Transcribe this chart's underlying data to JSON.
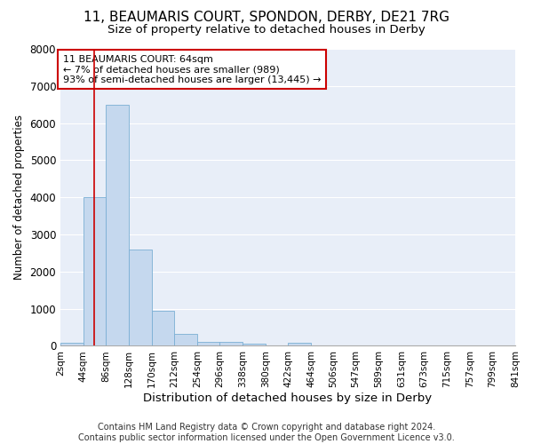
{
  "title1": "11, BEAUMARIS COURT, SPONDON, DERBY, DE21 7RG",
  "title2": "Size of property relative to detached houses in Derby",
  "xlabel": "Distribution of detached houses by size in Derby",
  "ylabel": "Number of detached properties",
  "bar_color": "#c5d8ee",
  "bar_edge_color": "#7aafd4",
  "vline_color": "#cc0000",
  "vline_x": 64,
  "annotation_line1": "11 BEAUMARIS COURT: 64sqm",
  "annotation_line2": "← 7% of detached houses are smaller (989)",
  "annotation_line3": "93% of semi-detached houses are larger (13,445) →",
  "annotation_box_facecolor": "#ffffff",
  "annotation_box_edgecolor": "#cc0000",
  "bin_edges": [
    2,
    44,
    86,
    128,
    170,
    212,
    254,
    296,
    338,
    380,
    422,
    464,
    506,
    547,
    589,
    631,
    673,
    715,
    757,
    799,
    841
  ],
  "bar_heights": [
    75,
    4000,
    6500,
    2600,
    950,
    320,
    110,
    100,
    70,
    0,
    80,
    0,
    0,
    0,
    0,
    0,
    0,
    0,
    0,
    0
  ],
  "ylim": [
    0,
    8000
  ],
  "yticks": [
    0,
    1000,
    2000,
    3000,
    4000,
    5000,
    6000,
    7000,
    8000
  ],
  "background_color": "#e8eef8",
  "grid_color": "#ffffff",
  "fig_facecolor": "#ffffff",
  "title1_fontsize": 11,
  "title2_fontsize": 9.5,
  "xlabel_fontsize": 9.5,
  "ylabel_fontsize": 8.5,
  "ytick_fontsize": 8.5,
  "xtick_fontsize": 7.5,
  "annotation_fontsize": 8,
  "footer_fontsize": 7,
  "footer1": "Contains HM Land Registry data © Crown copyright and database right 2024.",
  "footer2": "Contains public sector information licensed under the Open Government Licence v3.0."
}
